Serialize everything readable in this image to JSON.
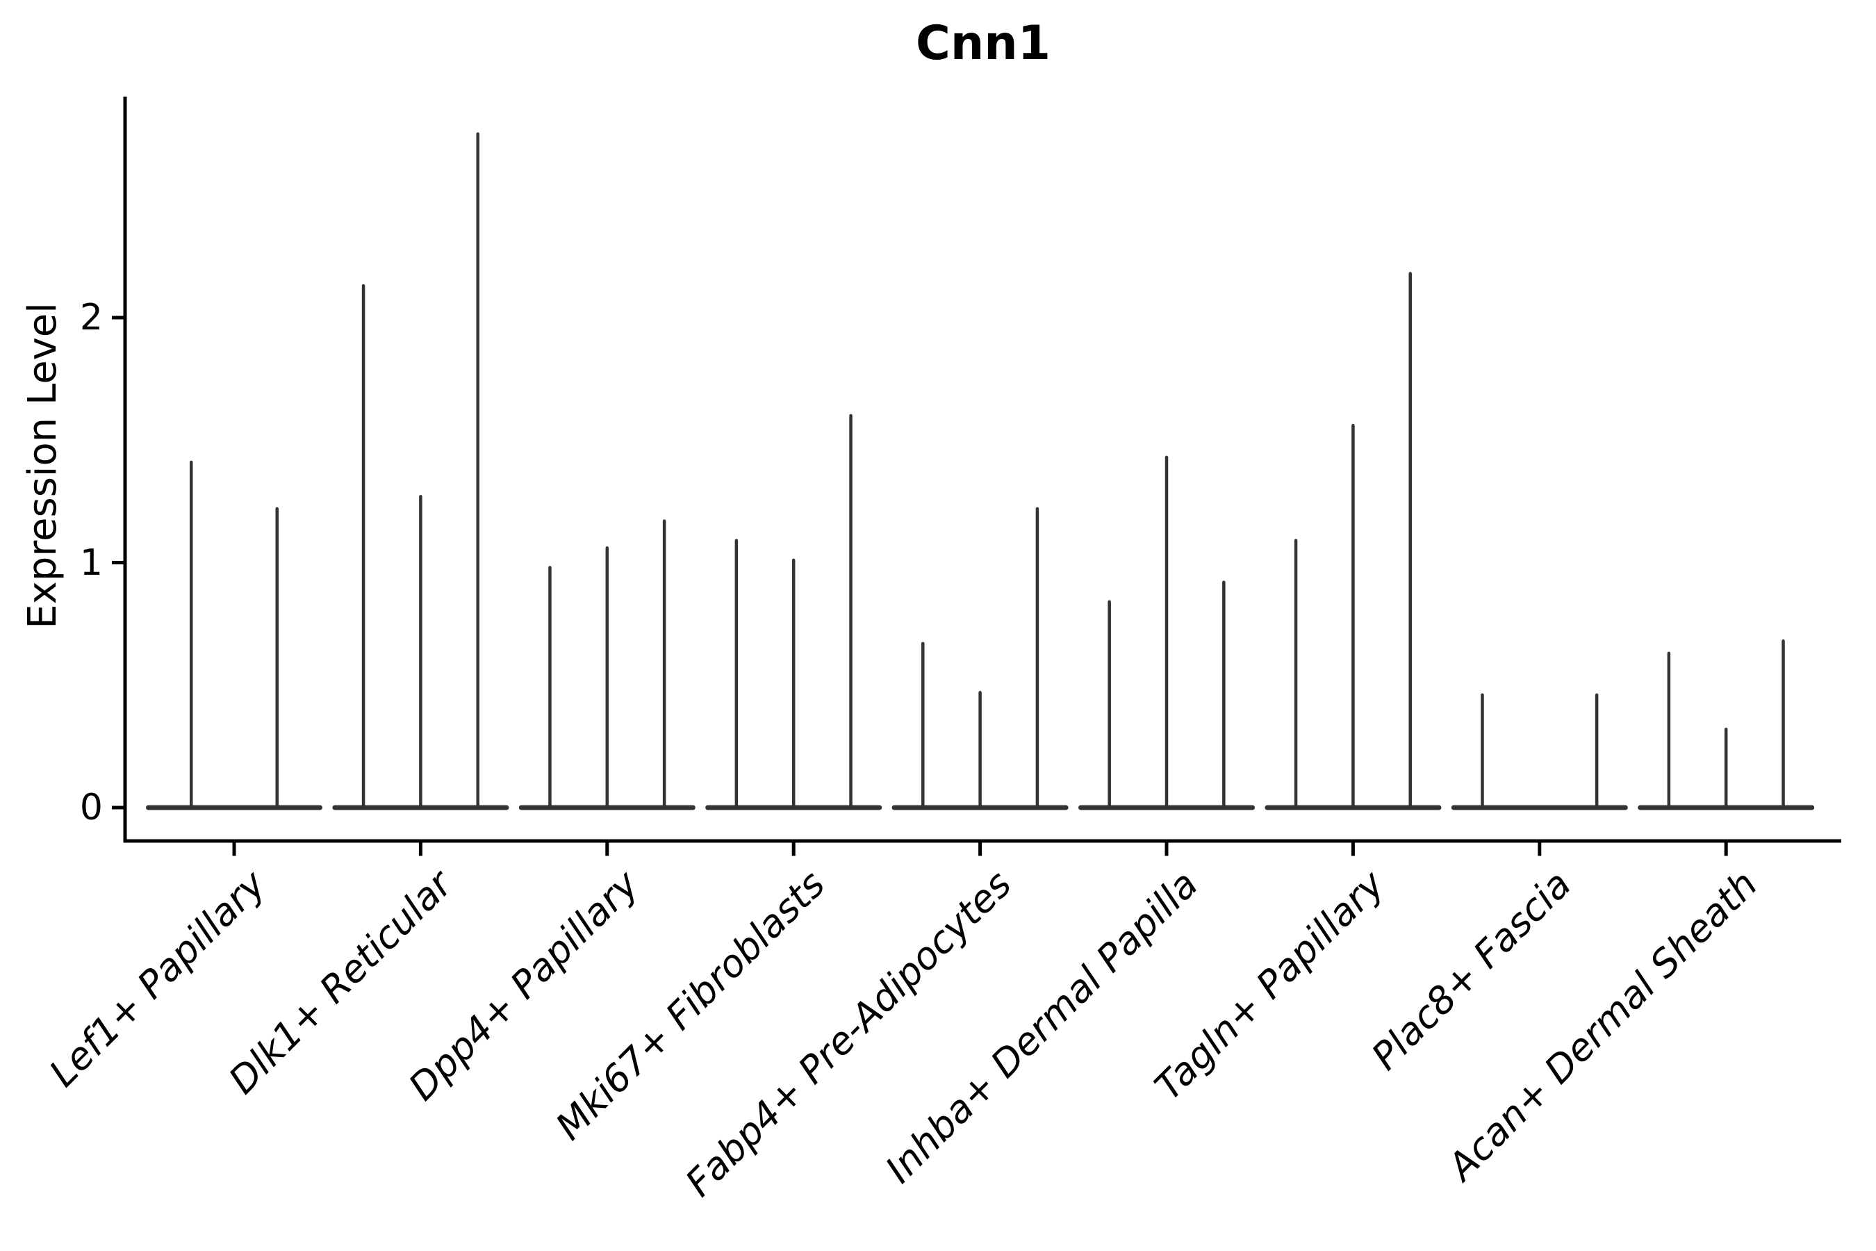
{
  "title": "Cnn1",
  "chart_data": {
    "type": "violin",
    "title": "Cnn1",
    "ylabel": "Expression Level",
    "xlabel": "",
    "yticks": [
      0,
      1,
      2
    ],
    "ylim": [
      0,
      2.9
    ],
    "x_tick_rotation": 45,
    "grid": false,
    "legend": "none",
    "violin_color": "#333333",
    "axis_color": "#000000",
    "categories": [
      "Lef1+ Papillary",
      "Dlk1+ Reticular",
      "Dpp4+ Papillary",
      "Mki67+ Fibroblasts",
      "Fabp4+ Pre-Adipocytes",
      "Inhba+ Dermal Papilla",
      "Tagln+ Papillary",
      "Plac8+ Fascia",
      "Acan+ Dermal Sheath"
    ],
    "groups": [
      {
        "category": "Lef1+ Papillary",
        "spike_heights": [
          1.41,
          1.22
        ]
      },
      {
        "category": "Dlk1+ Reticular",
        "spike_heights": [
          2.13,
          1.27,
          2.75
        ]
      },
      {
        "category": "Dpp4+ Papillary",
        "spike_heights": [
          0.98,
          1.06,
          1.17
        ]
      },
      {
        "category": "Mki67+ Fibroblasts",
        "spike_heights": [
          1.09,
          1.01,
          1.6
        ]
      },
      {
        "category": "Fabp4+ Pre-Adipocytes",
        "spike_heights": [
          0.67,
          0.47,
          1.22
        ]
      },
      {
        "category": "Inhba+ Dermal Papilla",
        "spike_heights": [
          0.84,
          1.43,
          0.92
        ]
      },
      {
        "category": "Tagln+ Papillary",
        "spike_heights": [
          1.09,
          1.56,
          2.18
        ]
      },
      {
        "category": "Plac8+ Fascia",
        "spike_heights": [
          0.46,
          0,
          0.46
        ]
      },
      {
        "category": "Acan+ Dermal Sheath",
        "spike_heights": [
          0.63,
          0.32,
          0.68
        ]
      }
    ]
  }
}
